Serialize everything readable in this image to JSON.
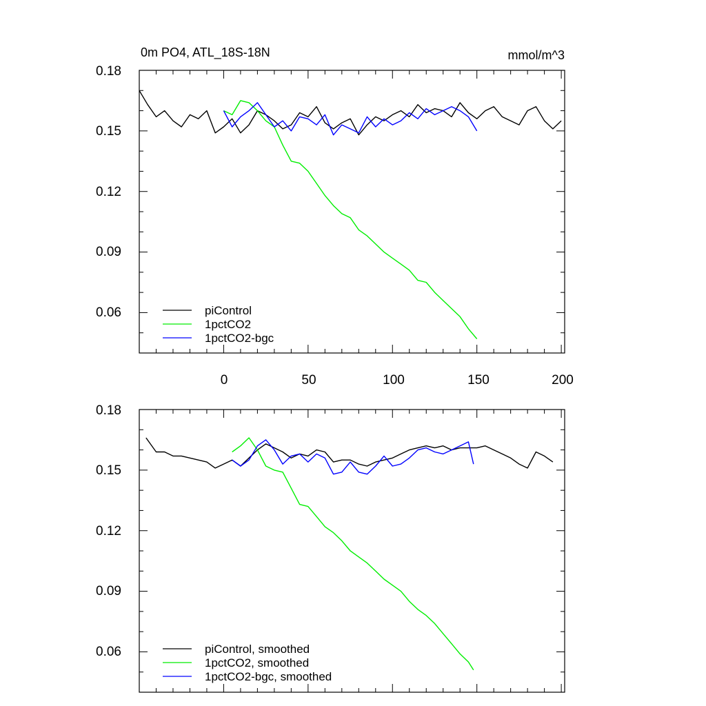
{
  "chart_data": [
    {
      "type": "line",
      "title": "0m PO4, ATL_18S-18N",
      "units": "mmol/m^3",
      "x_ticks": [
        0,
        50,
        100,
        150,
        200
      ],
      "y_ticks": [
        0.06,
        0.09,
        0.12,
        0.15,
        0.18
      ],
      "x_tick_labels": [
        "0",
        "50",
        "100",
        "150",
        "200"
      ],
      "y_tick_labels": [
        "0.06",
        "0.09",
        "0.12",
        "0.15",
        "0.18"
      ],
      "xlim": [
        -50,
        202
      ],
      "ylim": [
        0.04,
        0.18
      ],
      "legend_position": "bottom-left",
      "series": [
        {
          "name": "piControl",
          "color": "#000000",
          "x": [
            -50,
            -45,
            -40,
            -35,
            -30,
            -25,
            -20,
            -15,
            -10,
            -5,
            0,
            5,
            10,
            15,
            20,
            25,
            30,
            35,
            40,
            45,
            50,
            55,
            60,
            65,
            70,
            75,
            80,
            85,
            90,
            95,
            100,
            105,
            110,
            115,
            120,
            125,
            130,
            135,
            140,
            145,
            150,
            155,
            160,
            165,
            170,
            175,
            180,
            185,
            190,
            195,
            200
          ],
          "y": [
            0.17,
            0.163,
            0.157,
            0.16,
            0.155,
            0.152,
            0.158,
            0.156,
            0.16,
            0.149,
            0.152,
            0.156,
            0.149,
            0.153,
            0.16,
            0.158,
            0.155,
            0.151,
            0.153,
            0.159,
            0.157,
            0.162,
            0.154,
            0.151,
            0.154,
            0.156,
            0.148,
            0.153,
            0.157,
            0.155,
            0.158,
            0.16,
            0.157,
            0.163,
            0.159,
            0.161,
            0.16,
            0.157,
            0.164,
            0.159,
            0.156,
            0.16,
            0.162,
            0.157,
            0.155,
            0.153,
            0.16,
            0.162,
            0.155,
            0.151,
            0.155
          ]
        },
        {
          "name": "1pctCO2",
          "color": "#00ee00",
          "x": [
            0,
            5,
            10,
            15,
            20,
            25,
            30,
            35,
            40,
            45,
            50,
            55,
            60,
            65,
            70,
            75,
            80,
            85,
            90,
            95,
            100,
            105,
            110,
            115,
            120,
            125,
            130,
            135,
            140,
            145,
            150
          ],
          "y": [
            0.16,
            0.158,
            0.165,
            0.164,
            0.16,
            0.155,
            0.152,
            0.143,
            0.135,
            0.134,
            0.13,
            0.124,
            0.118,
            0.113,
            0.109,
            0.107,
            0.101,
            0.098,
            0.094,
            0.09,
            0.087,
            0.084,
            0.081,
            0.076,
            0.075,
            0.07,
            0.066,
            0.062,
            0.058,
            0.052,
            0.047
          ]
        },
        {
          "name": "1pctCO2-bgc",
          "color": "#0000ff",
          "x": [
            0,
            5,
            10,
            15,
            20,
            25,
            30,
            35,
            40,
            45,
            50,
            55,
            60,
            65,
            70,
            75,
            80,
            85,
            90,
            95,
            100,
            105,
            110,
            115,
            120,
            125,
            130,
            135,
            140,
            145,
            150
          ],
          "y": [
            0.16,
            0.152,
            0.157,
            0.16,
            0.164,
            0.158,
            0.152,
            0.155,
            0.15,
            0.157,
            0.156,
            0.153,
            0.158,
            0.148,
            0.153,
            0.151,
            0.149,
            0.157,
            0.152,
            0.156,
            0.153,
            0.155,
            0.159,
            0.156,
            0.161,
            0.158,
            0.16,
            0.162,
            0.16,
            0.157,
            0.15
          ]
        }
      ]
    },
    {
      "type": "line",
      "x_ticks": [
        0,
        50,
        100,
        150,
        200
      ],
      "y_ticks": [
        0.06,
        0.09,
        0.12,
        0.15,
        0.18
      ],
      "y_tick_labels": [
        "0.06",
        "0.09",
        "0.12",
        "0.15",
        "0.18"
      ],
      "xlim": [
        -50,
        202
      ],
      "ylim": [
        0.04,
        0.18
      ],
      "legend_position": "bottom-left",
      "series": [
        {
          "name": "piControl, smoothed",
          "color": "#000000",
          "x": [
            -46,
            -40,
            -35,
            -30,
            -25,
            -20,
            -15,
            -10,
            -5,
            0,
            5,
            10,
            15,
            20,
            25,
            30,
            35,
            40,
            45,
            50,
            55,
            60,
            65,
            70,
            75,
            80,
            85,
            90,
            95,
            100,
            105,
            110,
            115,
            120,
            125,
            130,
            135,
            140,
            145,
            150,
            155,
            160,
            165,
            170,
            175,
            180,
            185,
            190,
            195
          ],
          "y": [
            0.166,
            0.159,
            0.159,
            0.157,
            0.157,
            0.156,
            0.155,
            0.154,
            0.151,
            0.153,
            0.155,
            0.152,
            0.156,
            0.16,
            0.163,
            0.161,
            0.159,
            0.156,
            0.158,
            0.157,
            0.16,
            0.159,
            0.154,
            0.155,
            0.155,
            0.153,
            0.152,
            0.154,
            0.155,
            0.156,
            0.158,
            0.16,
            0.161,
            0.162,
            0.161,
            0.162,
            0.16,
            0.161,
            0.161,
            0.161,
            0.162,
            0.16,
            0.158,
            0.156,
            0.153,
            0.151,
            0.159,
            0.157,
            0.154
          ]
        },
        {
          "name": "1pctCO2, smoothed",
          "color": "#00ee00",
          "x": [
            5,
            10,
            15,
            20,
            25,
            30,
            35,
            40,
            45,
            50,
            55,
            60,
            65,
            70,
            75,
            80,
            85,
            90,
            95,
            100,
            105,
            110,
            115,
            120,
            125,
            130,
            135,
            140,
            145,
            148
          ],
          "y": [
            0.159,
            0.162,
            0.166,
            0.16,
            0.152,
            0.15,
            0.149,
            0.141,
            0.133,
            0.132,
            0.127,
            0.122,
            0.119,
            0.115,
            0.11,
            0.107,
            0.104,
            0.1,
            0.096,
            0.093,
            0.09,
            0.085,
            0.081,
            0.078,
            0.074,
            0.069,
            0.064,
            0.059,
            0.055,
            0.051
          ]
        },
        {
          "name": "1pctCO2-bgc, smoothed",
          "color": "#0000ff",
          "x": [
            5,
            10,
            15,
            20,
            25,
            30,
            35,
            40,
            45,
            50,
            55,
            60,
            65,
            70,
            75,
            80,
            85,
            90,
            95,
            100,
            105,
            110,
            115,
            120,
            125,
            130,
            135,
            140,
            145,
            148
          ],
          "y": [
            0.155,
            0.152,
            0.155,
            0.162,
            0.165,
            0.16,
            0.153,
            0.157,
            0.158,
            0.154,
            0.158,
            0.156,
            0.148,
            0.149,
            0.154,
            0.149,
            0.148,
            0.152,
            0.157,
            0.152,
            0.153,
            0.156,
            0.16,
            0.161,
            0.159,
            0.158,
            0.16,
            0.162,
            0.164,
            0.153
          ]
        }
      ]
    }
  ]
}
